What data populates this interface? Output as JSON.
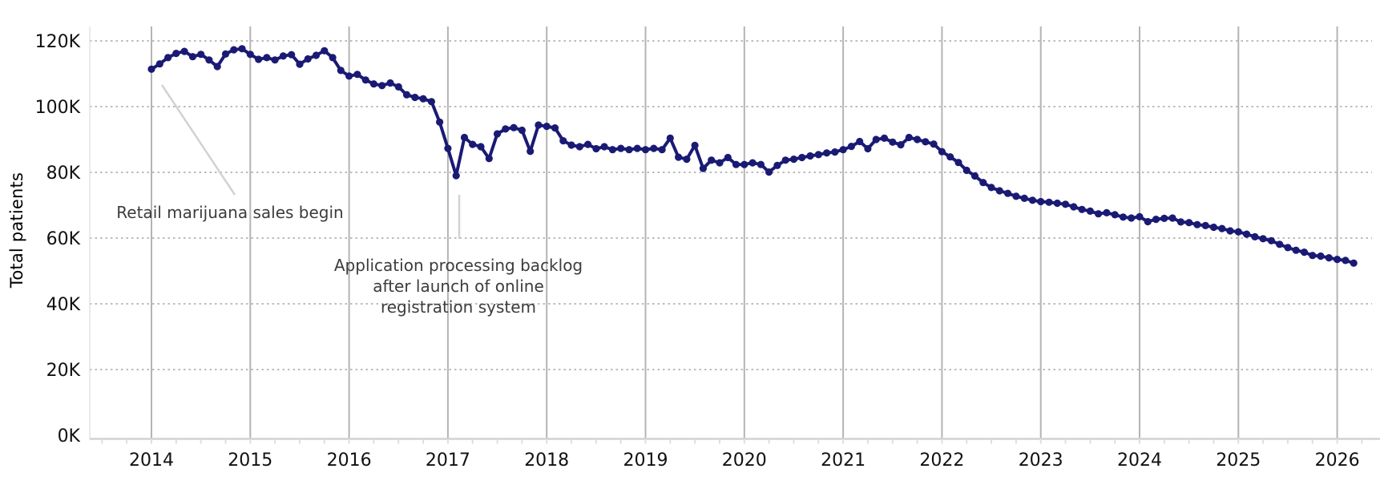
{
  "chart_data": {
    "type": "line",
    "title": "",
    "xlabel": "",
    "ylabel": "Total patients",
    "x_tick_labels": [
      "2014",
      "2015",
      "2016",
      "2017",
      "2018",
      "2019",
      "2020",
      "2021",
      "2022",
      "2023",
      "2024",
      "2025",
      "2026"
    ],
    "y_tick_labels": [
      "0K",
      "20K",
      "40K",
      "60K",
      "80K",
      "100K",
      "120K"
    ],
    "ylim_k": [
      0,
      128
    ],
    "grid": "horizontal-dotted, vertical-solid",
    "legend": "none",
    "frequency": "monthly",
    "x_start": "2014-01",
    "x_end": "2026-03",
    "series": [
      {
        "name": "Total patients (thousands)",
        "color": "#1a1a75",
        "values_k": [
          111.4,
          113.0,
          114.9,
          116.2,
          116.8,
          115.2,
          115.9,
          114.2,
          112.2,
          116.0,
          117.3,
          117.6,
          115.9,
          114.4,
          114.9,
          114.2,
          115.4,
          115.8,
          112.9,
          114.5,
          115.6,
          117.0,
          114.9,
          111.0,
          109.3,
          109.8,
          108.1,
          106.9,
          106.4,
          107.2,
          106.0,
          103.6,
          102.8,
          102.4,
          101.5,
          95.3,
          87.3,
          79.0,
          90.6,
          88.5,
          87.8,
          84.2,
          91.7,
          93.2,
          93.6,
          92.8,
          86.4,
          94.4,
          94.0,
          93.5,
          89.6,
          88.3,
          87.8,
          88.5,
          87.2,
          87.8,
          86.9,
          87.3,
          86.9,
          87.3,
          86.9,
          87.3,
          86.9,
          90.4,
          84.6,
          84.0,
          88.2,
          81.2,
          83.7,
          82.9,
          84.5,
          82.4,
          82.4,
          82.9,
          82.4,
          80.1,
          82.1,
          83.7,
          84.0,
          84.5,
          85.0,
          85.4,
          85.9,
          86.2,
          86.9,
          87.9,
          89.4,
          87.2,
          90.0,
          90.4,
          89.2,
          88.4,
          90.6,
          90.0,
          89.3,
          88.6,
          86.3,
          84.7,
          83.0,
          80.6,
          78.9,
          76.9,
          75.4,
          74.4,
          73.6,
          72.7,
          72.1,
          71.5,
          71.1,
          70.9,
          70.6,
          70.3,
          69.5,
          68.7,
          68.2,
          67.4,
          67.7,
          67.1,
          66.4,
          66.1,
          66.5,
          65.0,
          65.7,
          66.0,
          66.1,
          64.9,
          64.7,
          64.1,
          63.8,
          63.3,
          62.9,
          62.2,
          61.9,
          61.2,
          60.4,
          59.8,
          59.2,
          58.1,
          57.1,
          56.3,
          55.7,
          54.7,
          54.5,
          54.0,
          53.5,
          53.2,
          52.4
        ]
      }
    ],
    "annotations": [
      {
        "text": "Retail marijuana sales begin"
      },
      {
        "lines": [
          "Application processing backlog",
          "after launch of online",
          "registration system"
        ]
      }
    ],
    "colors": {
      "line": "#1a1a75",
      "vertical_grid": "#b4b4b4",
      "dotted_grid": "#bcbcbc",
      "axis_line": "#d2d2d2",
      "tick_mark": "#dedede",
      "tick_text": "#111111",
      "annotation_text": "#3c3c3c",
      "leader_line": "#d2d2d2"
    }
  }
}
